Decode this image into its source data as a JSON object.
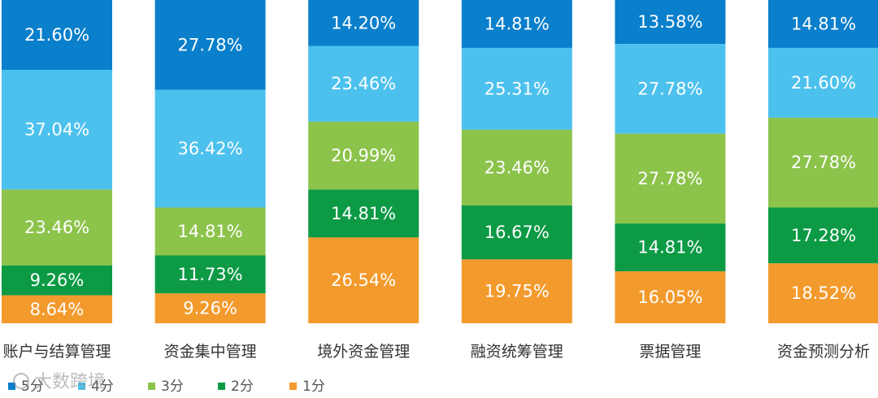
{
  "chart_data": {
    "type": "bar",
    "stacked": true,
    "normalized": true,
    "categories": [
      "账户与结算管理",
      "资金集中管理",
      "境外资金管理",
      "融资统筹管理",
      "票据管理",
      "资金预测分析"
    ],
    "series": [
      {
        "name": "5分",
        "color": "#0a7fcb",
        "labels": [
          "21.60%",
          "27.78%",
          "14.20%",
          "14.81%",
          "13.58%",
          "14.81%"
        ],
        "values": [
          21.6,
          27.78,
          14.2,
          14.81,
          13.58,
          14.81
        ]
      },
      {
        "name": "4分",
        "color": "#4dc1ee",
        "labels": [
          "37.04%",
          "36.42%",
          "23.46%",
          "25.31%",
          "27.78%",
          "21.60%"
        ],
        "values": [
          37.04,
          36.42,
          23.46,
          25.31,
          27.78,
          21.6
        ]
      },
      {
        "name": "3分",
        "color": "#8cc34b",
        "labels": [
          "23.46%",
          "14.81%",
          "20.99%",
          "23.46%",
          "27.78%",
          "27.78%"
        ],
        "values": [
          23.46,
          14.81,
          20.99,
          23.46,
          27.78,
          27.78
        ]
      },
      {
        "name": "2分",
        "color": "#0c9a45",
        "labels": [
          "9.26%",
          "11.73%",
          "14.81%",
          "16.67%",
          "14.81%",
          "17.28%"
        ],
        "values": [
          9.26,
          11.73,
          14.81,
          16.67,
          14.81,
          17.28
        ]
      },
      {
        "name": "1分",
        "color": "#f39a2d",
        "labels": [
          "8.64%",
          "9.26%",
          "26.54%",
          "19.75%",
          "16.05%",
          "18.52%"
        ],
        "values": [
          8.64,
          9.26,
          26.54,
          19.75,
          16.05,
          18.52
        ]
      }
    ],
    "legend_position": "bottom-left",
    "grid": false
  },
  "watermark": {
    "text": "大数跨境"
  }
}
